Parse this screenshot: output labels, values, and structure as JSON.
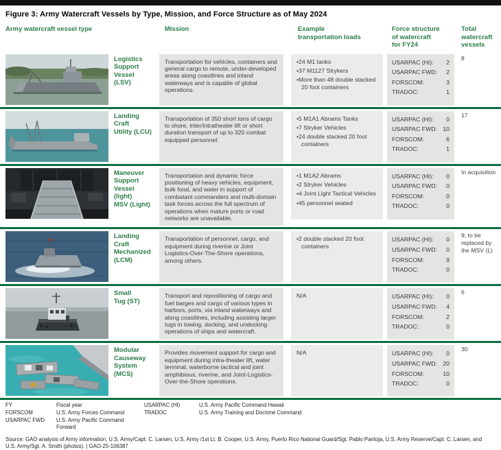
{
  "figure": {
    "title": "Figure 3: Army Watercraft Vessels by Type, Mission, and Force Structure as of May 2024"
  },
  "table": {
    "headers": {
      "type": "Army watercraft vessel type",
      "mission": "Mission",
      "loads": "Example\ntransportation loads",
      "force": "Force structure\nof watercraft\nfor FY24",
      "total": "Total\nwatercraft\nvessels"
    },
    "force_labels": [
      "USARPAC (HI):",
      "USARPAC FWD:",
      "FORSCOM:",
      "TRADOC:"
    ],
    "rows": [
      {
        "name": "Logistics\nSupport\nVessel\n(LSV)",
        "photo": "lsv-photo",
        "mission": "Transportation for vehicles, containers and general cargo to remote, under-developed areas along coastlines and inland waterways and is capable of global operations.",
        "loads": [
          "24 M1 tanks",
          "37 M1127 Strykers",
          "More than 48 double stacked 20 foot containers"
        ],
        "loads_na": false,
        "force": [
          "2",
          "2",
          "3",
          "1"
        ],
        "total": "8"
      },
      {
        "name": "Landing\nCraft\nUtility (LCU)",
        "photo": "lcu-photo",
        "mission": "Transportation of 350 short tons of cargo to shore, inter/intratheater lift or short duration transport of up to 320 combat equipped personnel.",
        "loads": [
          "5 M1A1 Abrams Tanks",
          "7 Stryker Vehicles",
          "24 double stacked 20 foot containers"
        ],
        "loads_na": false,
        "force": [
          "0",
          "10",
          "6",
          "1"
        ],
        "total": "17"
      },
      {
        "name": "Maneuver\nSupport\nVessel\n(light)\nMSV (Light)",
        "photo": "msv-photo",
        "mission": "Transportation and dynamic force positioning of heavy vehicles, equipment, bulk food, and water in support of combatant commanders and multi-domain task forces across the full spectrum of operations when mature ports or road networks are unavailable.",
        "loads": [
          "1 M1A2 Abrams",
          "2 Stryker Vehicles",
          "4 Joint Light Tactical Vehicles",
          "45 personnel seated"
        ],
        "loads_na": false,
        "force": [
          "0",
          "0",
          "0",
          "0"
        ],
        "total": "In acquisition"
      },
      {
        "name": "Landing\nCraft\nMechanized\n(LCM)",
        "photo": "lcm-photo",
        "mission": "Transportation of personnel, cargo, and equipment during riverine or Joint Logistics-Over-The-Shore operations, among others.",
        "loads": [
          "2 double stacked 20 foot containers"
        ],
        "loads_na": false,
        "force": [
          "0",
          "0",
          "9",
          "0"
        ],
        "total": "9; to be replaced by the MSV (L)"
      },
      {
        "name": "Small\nTug (ST)",
        "photo": "st-photo",
        "mission": "Transport and repositioning of cargo and fuel barges and cargo of various types in harbors, ports, via inland waterways and along coastlines, including assisting larger tugs in towing, docking, and undocking operations of ships and watercraft.",
        "loads": [
          "N/A"
        ],
        "loads_na": true,
        "force": [
          "0",
          "4",
          "2",
          "0"
        ],
        "total": "6"
      },
      {
        "name": "Modular\nCauseway\nSystem\n(MCS)",
        "photo": "mcs-photo",
        "mission": "Provides movement support for cargo and equipment during intra-theater lift, water terminal, waterborne tactical and joint amphibious, riverine, and Joint-Logistics-Over-the-Shore operations.",
        "loads": [
          "N/A"
        ],
        "loads_na": true,
        "force": [
          "0",
          "20",
          "10",
          "0"
        ],
        "total": "30"
      }
    ]
  },
  "legend": {
    "left": [
      {
        "term": "FY",
        "def": "Fiscal year"
      },
      {
        "term": "FORSCOM",
        "def": "U.S. Army Forces Command"
      },
      {
        "term": "USARPAC FWD",
        "def": "U.S. Army Pacific Command Forward"
      }
    ],
    "right": [
      {
        "term": "USARPAC (HI)",
        "def": "U.S. Army Pacific Command Hawaii"
      },
      {
        "term": "TRADOC",
        "def": "U.S. Army Training and Doctrine Command"
      }
    ]
  },
  "source": "Source: GAO analysis of Army information; U.S. Army/Capt. C. Larsen, U.S. Army /1st Lt. B. Cooper, U.S. Army, Puerto Rico National Guard/Sgt. Pablo Pantoja, U.S. Army Reserve/Capt. C. Larsen, and U.S. Army/Sgt. A. Smith (photos).  |  GAO-25-106387",
  "colors": {
    "accent_green_text": "#2a7d47",
    "accent_green_rule": "#0c6f43",
    "cell_gray": "#e4e4e2",
    "cell_light_gray": "#ebebe9",
    "top_bar": "#111111"
  }
}
